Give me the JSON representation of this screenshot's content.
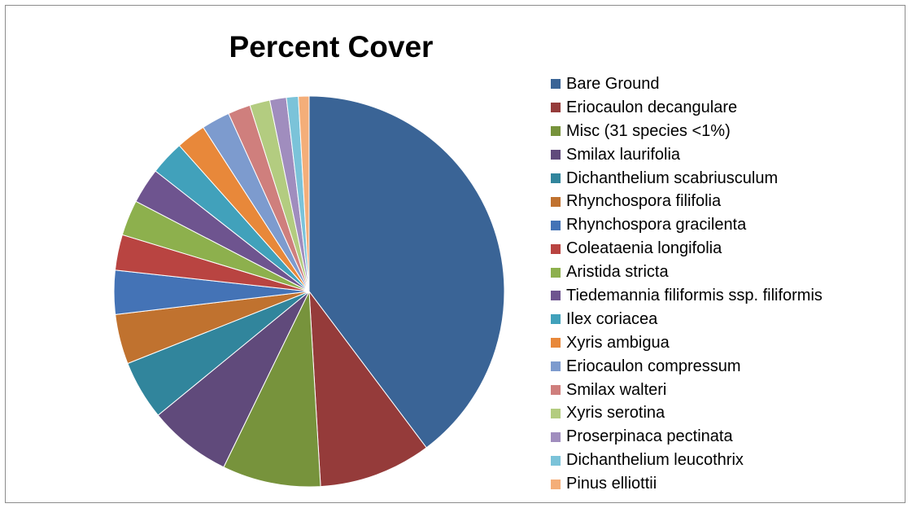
{
  "chart_data": {
    "type": "pie",
    "title": "Percent Cover",
    "legend_position": "right",
    "slices": [
      {
        "label": "Bare Ground",
        "value": 40.5,
        "color": "#3A6496"
      },
      {
        "label": "Eriocaulon decangulare",
        "value": 9.5,
        "color": "#953B3A"
      },
      {
        "label": "Misc (31 species <1%)",
        "value": 8.3,
        "color": "#77933C"
      },
      {
        "label": "Smilax laurifolia",
        "value": 7.0,
        "color": "#604A7B"
      },
      {
        "label": "Dichanthelium scabriusculum",
        "value": 5.0,
        "color": "#31859C"
      },
      {
        "label": "Rhynchospora filifolia",
        "value": 4.2,
        "color": "#C0722F"
      },
      {
        "label": "Rhynchospora gracilenta",
        "value": 3.7,
        "color": "#4473B6"
      },
      {
        "label": "Coleataenia longifolia",
        "value": 3.0,
        "color": "#B94441"
      },
      {
        "label": "Aristida stricta",
        "value": 3.0,
        "color": "#8DB04D"
      },
      {
        "label": "Tiedemannia filiformis ssp. filiformis",
        "value": 3.0,
        "color": "#6E548F"
      },
      {
        "label": "Ilex coriacea",
        "value": 2.9,
        "color": "#41A1BB"
      },
      {
        "label": "Xyris ambigua",
        "value": 2.5,
        "color": "#E8883A"
      },
      {
        "label": "Eriocaulon compressum",
        "value": 2.4,
        "color": "#7D9BCE"
      },
      {
        "label": "Smilax walteri",
        "value": 1.9,
        "color": "#CF7F7D"
      },
      {
        "label": "Xyris serotina",
        "value": 1.7,
        "color": "#B3CC80"
      },
      {
        "label": "Proserpinaca pectinata",
        "value": 1.4,
        "color": "#A08DBE"
      },
      {
        "label": "Dichanthelium leucothrix",
        "value": 1.0,
        "color": "#7BC3D9"
      },
      {
        "label": "Pinus elliottii",
        "value": 0.9,
        "color": "#F4AE79"
      }
    ]
  }
}
